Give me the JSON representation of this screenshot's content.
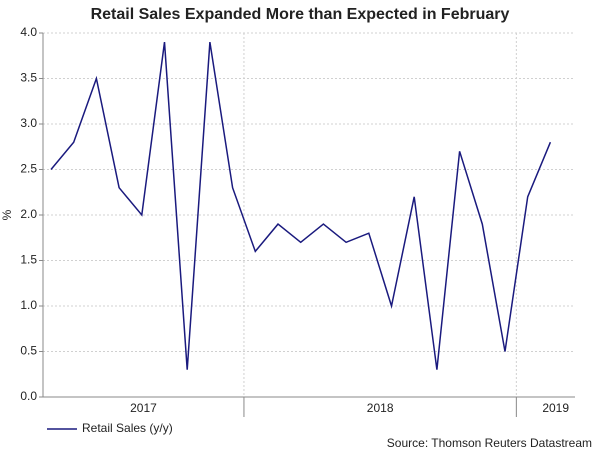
{
  "chart_data": {
    "type": "line",
    "title": "Retail Sales Expanded More than Expected in February",
    "y_axis_label": "%",
    "x_axis_labels": [
      "2017",
      "2018",
      "2019"
    ],
    "categories": [
      null,
      null,
      null,
      null,
      null,
      null,
      null,
      null,
      null,
      null,
      null,
      null,
      null,
      null,
      null,
      null,
      null,
      null,
      null,
      null,
      null,
      null,
      null
    ],
    "series": [
      {
        "name": "Retail Sales (y/y)",
        "color": "#1a1a7e",
        "values": [
          2.5,
          2.8,
          3.5,
          2.3,
          2.0,
          3.9,
          0.3,
          3.9,
          2.3,
          1.6,
          1.9,
          1.7,
          1.9,
          1.7,
          1.8,
          1.0,
          2.2,
          0.3,
          2.7,
          1.9,
          0.5,
          2.2,
          2.8
        ]
      }
    ],
    "ylim": [
      0,
      4
    ],
    "yticks": [
      {
        "value": 0,
        "label": "0.0"
      },
      {
        "value": 0.5,
        "label": "0.5"
      },
      {
        "value": 1,
        "label": "1.0"
      },
      {
        "value": 1.5,
        "label": "1.5"
      },
      {
        "value": 2,
        "label": "2.0"
      },
      {
        "value": 2.5,
        "label": "2.5"
      },
      {
        "value": 3,
        "label": "3.0"
      },
      {
        "value": 3.5,
        "label": "3.5"
      },
      {
        "value": 4,
        "label": "4.0"
      }
    ],
    "grid": true,
    "source": "Source: Thomson Reuters Datastream"
  }
}
